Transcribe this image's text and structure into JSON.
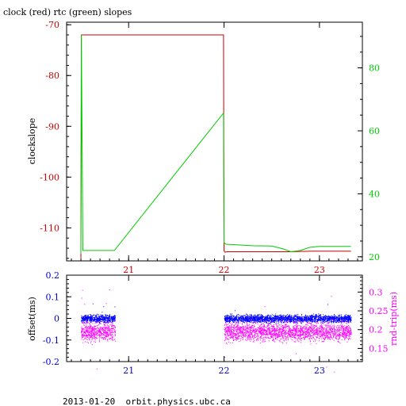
{
  "title": "clock (red) rtc (green) slopes",
  "footer": "2013-01-20  orbit.physics.ubc.ca",
  "colors": {
    "clock": "#cc0000",
    "rtc": "#00cc00",
    "offset": "#0000ff",
    "rndtrip": "#ff00ff",
    "axis": "#000000"
  },
  "chart_data": [
    {
      "type": "line",
      "title": "clock (red) rtc (green) slopes",
      "xlim": [
        20.35,
        23.45
      ],
      "x_ticks": [
        "21",
        "22",
        "23"
      ],
      "x_tick_values": [
        21,
        22,
        23
      ],
      "left_axis": {
        "label": "clockslope",
        "ylim": [
          -116.5,
          -69.5
        ],
        "ticks": [
          "-70",
          "-80",
          "-90",
          "-100",
          "-110"
        ],
        "tick_values": [
          -70,
          -80,
          -90,
          -100,
          -110
        ],
        "color": "#cc0000"
      },
      "right_axis": {
        "label": "",
        "ylim": [
          18.7,
          94.5
        ],
        "ticks": [
          "80",
          "60",
          "40",
          "20"
        ],
        "tick_values": [
          80,
          60,
          40,
          20
        ],
        "color": "#00cc00"
      },
      "series": [
        {
          "axis": "left",
          "color": "#cc0000",
          "x": [
            20.5,
            20.505,
            20.52,
            21.0,
            21.5,
            21.99,
            21.995,
            22.0,
            22.01,
            22.03,
            22.2,
            22.5,
            22.7,
            22.9,
            23.1,
            23.3,
            23.33
          ],
          "y": [
            -116.0,
            -72.0,
            -72.0,
            -72.0,
            -72.0,
            -72.0,
            -72.0,
            -114.5,
            -114.8,
            -114.7,
            -114.7,
            -114.7,
            -114.7,
            -114.6,
            -114.6,
            -114.6,
            -114.6
          ]
        },
        {
          "axis": "right",
          "color": "#00cc00",
          "x": [
            20.5,
            20.505,
            20.52,
            20.6,
            20.85,
            21.99,
            21.995,
            22.0,
            22.02,
            22.3,
            22.5,
            22.62,
            22.7,
            22.8,
            22.9,
            23.0,
            23.3,
            23.33
          ],
          "y": [
            21.0,
            90.5,
            22.0,
            22.0,
            22.0,
            65.5,
            65.5,
            24.5,
            24.0,
            23.5,
            23.4,
            22.5,
            21.6,
            22.0,
            23.0,
            23.3,
            23.3,
            23.3
          ]
        }
      ]
    },
    {
      "type": "scatter",
      "xlim": [
        20.35,
        23.45
      ],
      "x_ticks": [
        "21",
        "22",
        "23"
      ],
      "x_tick_values": [
        21,
        22,
        23
      ],
      "left_axis": {
        "label": "offset(ms)",
        "ylim": [
          -0.2,
          0.2
        ],
        "ticks": [
          "0.2",
          "0.1",
          "0",
          "-0.1",
          "-0.2"
        ],
        "tick_values": [
          0.2,
          0.1,
          0,
          -0.1,
          -0.2
        ],
        "color": "#0000cc"
      },
      "right_axis": {
        "label": "rnd-trip(ms)",
        "ylim": [
          0.115,
          0.345
        ],
        "ticks": [
          "0.3",
          "0.25",
          "0.2",
          "0.15"
        ],
        "tick_values": [
          0.3,
          0.25,
          0.2,
          0.15
        ],
        "color": "#ff00ff"
      },
      "series": [
        {
          "axis": "left",
          "color": "#0000ff",
          "segments": [
            [
              20.5,
              20.86
            ],
            [
              22.0,
              23.33
            ]
          ],
          "center": 0.0,
          "spread": 0.025
        },
        {
          "axis": "right",
          "color": "#ff00ff",
          "segments": [
            [
              20.5,
              20.86
            ],
            [
              22.0,
              23.33
            ]
          ],
          "center": 0.195,
          "spread": 0.035
        }
      ]
    }
  ]
}
